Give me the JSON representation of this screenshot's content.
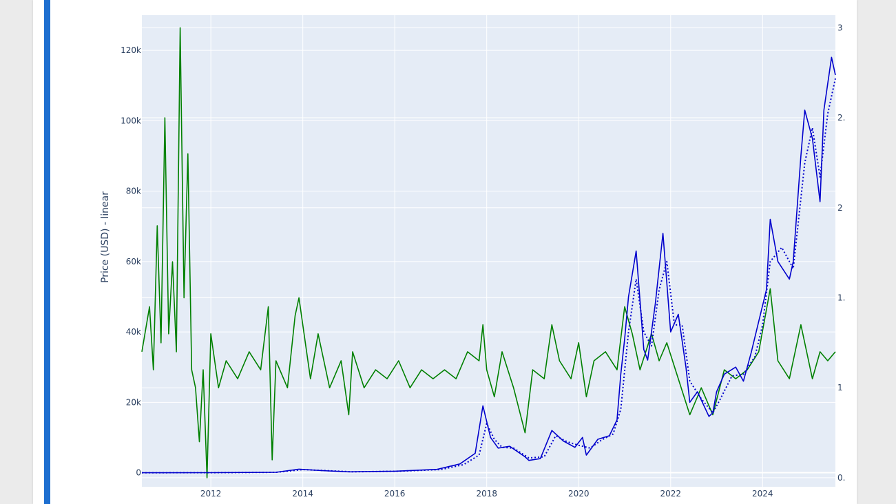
{
  "colors": {
    "accent": "#1e6fd0",
    "plot_bg": "#e5ecf6",
    "price": "#0000cc",
    "volatility": "#008000"
  },
  "chart_data": {
    "type": "line",
    "title": "",
    "xlabel": "",
    "ylabel": "Price (USD) - linear",
    "grid": true,
    "x_tick_labels": [
      "2012",
      "2014",
      "2016",
      "2018",
      "2020",
      "2022",
      "2024"
    ],
    "y_tick_labels": [
      "0",
      "20k",
      "40k",
      "60k",
      "80k",
      "100k",
      "120k"
    ],
    "y2_tick_labels": [
      "0.",
      "1",
      "1.",
      "2",
      "2.",
      "3"
    ],
    "xlim": [
      "2010-07",
      "2025-08"
    ],
    "ylim": [
      -4000,
      130000
    ],
    "y2lim": [
      0.45,
      3.07
    ],
    "series": [
      {
        "axis": "y2",
        "style": "solid",
        "color": "#008000",
        "points": [
          [
            "2010-07",
            1.2
          ],
          [
            "2010-09",
            1.45
          ],
          [
            "2010-10",
            1.1
          ],
          [
            "2010-11",
            1.9
          ],
          [
            "2010-12",
            1.25
          ],
          [
            "2011-01",
            2.5
          ],
          [
            "2011-02",
            1.3
          ],
          [
            "2011-03",
            1.7
          ],
          [
            "2011-04",
            1.2
          ],
          [
            "2011-05",
            3.0
          ],
          [
            "2011-06",
            1.5
          ],
          [
            "2011-07",
            2.3
          ],
          [
            "2011-08",
            1.1
          ],
          [
            "2011-09",
            1.0
          ],
          [
            "2011-10",
            0.7
          ],
          [
            "2011-11",
            1.1
          ],
          [
            "2011-12",
            0.5
          ],
          [
            "2012-01",
            1.3
          ],
          [
            "2012-03",
            1.0
          ],
          [
            "2012-05",
            1.15
          ],
          [
            "2012-08",
            1.05
          ],
          [
            "2012-11",
            1.2
          ],
          [
            "2013-02",
            1.1
          ],
          [
            "2013-04",
            1.45
          ],
          [
            "2013-05",
            0.6
          ],
          [
            "2013-06",
            1.15
          ],
          [
            "2013-09",
            1.0
          ],
          [
            "2013-11",
            1.4
          ],
          [
            "2013-12",
            1.5
          ],
          [
            "2014-02",
            1.2
          ],
          [
            "2014-03",
            1.05
          ],
          [
            "2014-05",
            1.3
          ],
          [
            "2014-08",
            1.0
          ],
          [
            "2014-11",
            1.15
          ],
          [
            "2015-01",
            0.85
          ],
          [
            "2015-02",
            1.2
          ],
          [
            "2015-05",
            1.0
          ],
          [
            "2015-08",
            1.1
          ],
          [
            "2015-11",
            1.05
          ],
          [
            "2016-02",
            1.15
          ],
          [
            "2016-05",
            1.0
          ],
          [
            "2016-08",
            1.1
          ],
          [
            "2016-11",
            1.05
          ],
          [
            "2017-02",
            1.1
          ],
          [
            "2017-05",
            1.05
          ],
          [
            "2017-08",
            1.2
          ],
          [
            "2017-11",
            1.15
          ],
          [
            "2017-12",
            1.35
          ],
          [
            "2018-01",
            1.1
          ],
          [
            "2018-03",
            0.95
          ],
          [
            "2018-05",
            1.2
          ],
          [
            "2018-08",
            1.0
          ],
          [
            "2018-11",
            0.75
          ],
          [
            "2019-01",
            1.1
          ],
          [
            "2019-04",
            1.05
          ],
          [
            "2019-06",
            1.35
          ],
          [
            "2019-08",
            1.15
          ],
          [
            "2019-11",
            1.05
          ],
          [
            "2020-01",
            1.25
          ],
          [
            "2020-03",
            0.95
          ],
          [
            "2020-05",
            1.15
          ],
          [
            "2020-08",
            1.2
          ],
          [
            "2020-11",
            1.1
          ],
          [
            "2021-01",
            1.45
          ],
          [
            "2021-03",
            1.3
          ],
          [
            "2021-05",
            1.1
          ],
          [
            "2021-08",
            1.3
          ],
          [
            "2021-10",
            1.15
          ],
          [
            "2021-12",
            1.25
          ],
          [
            "2022-03",
            1.05
          ],
          [
            "2022-06",
            0.85
          ],
          [
            "2022-09",
            1.0
          ],
          [
            "2022-12",
            0.85
          ],
          [
            "2023-03",
            1.1
          ],
          [
            "2023-06",
            1.05
          ],
          [
            "2023-09",
            1.1
          ],
          [
            "2023-12",
            1.2
          ],
          [
            "2024-03",
            1.55
          ],
          [
            "2024-05",
            1.15
          ],
          [
            "2024-08",
            1.05
          ],
          [
            "2024-11",
            1.35
          ],
          [
            "2025-02",
            1.05
          ],
          [
            "2025-04",
            1.2
          ],
          [
            "2025-06",
            1.15
          ],
          [
            "2025-08",
            1.2
          ]
        ]
      },
      {
        "axis": "y",
        "style": "solid",
        "color": "#0000cc",
        "points": [
          [
            "2010-07",
            0
          ],
          [
            "2012-01",
            5
          ],
          [
            "2013-06",
            100
          ],
          [
            "2013-12",
            1000
          ],
          [
            "2014-06",
            600
          ],
          [
            "2015-01",
            250
          ],
          [
            "2016-01",
            430
          ],
          [
            "2016-12",
            950
          ],
          [
            "2017-06",
            2500
          ],
          [
            "2017-10",
            5500
          ],
          [
            "2017-12",
            19000
          ],
          [
            "2018-02",
            10000
          ],
          [
            "2018-04",
            7000
          ],
          [
            "2018-07",
            7500
          ],
          [
            "2018-11",
            4500
          ],
          [
            "2018-12",
            3500
          ],
          [
            "2019-03",
            4000
          ],
          [
            "2019-06",
            12000
          ],
          [
            "2019-09",
            9000
          ],
          [
            "2019-12",
            7200
          ],
          [
            "2020-02",
            10000
          ],
          [
            "2020-03",
            5000
          ],
          [
            "2020-06",
            9500
          ],
          [
            "2020-09",
            10500
          ],
          [
            "2020-11",
            15000
          ],
          [
            "2020-12",
            28000
          ],
          [
            "2021-01",
            38000
          ],
          [
            "2021-02",
            50000
          ],
          [
            "2021-04",
            63000
          ],
          [
            "2021-06",
            35000
          ],
          [
            "2021-07",
            32000
          ],
          [
            "2021-09",
            48000
          ],
          [
            "2021-11",
            68000
          ],
          [
            "2022-01",
            40000
          ],
          [
            "2022-03",
            45000
          ],
          [
            "2022-05",
            30000
          ],
          [
            "2022-06",
            20000
          ],
          [
            "2022-08",
            23000
          ],
          [
            "2022-11",
            16000
          ],
          [
            "2022-12",
            17000
          ],
          [
            "2023-01",
            23000
          ],
          [
            "2023-03",
            28000
          ],
          [
            "2023-06",
            30000
          ],
          [
            "2023-08",
            26000
          ],
          [
            "2023-10",
            34000
          ],
          [
            "2023-12",
            43000
          ],
          [
            "2024-02",
            52000
          ],
          [
            "2024-03",
            72000
          ],
          [
            "2024-05",
            60000
          ],
          [
            "2024-08",
            55000
          ],
          [
            "2024-09",
            60000
          ],
          [
            "2024-11",
            90000
          ],
          [
            "2024-12",
            103000
          ],
          [
            "2025-02",
            95000
          ],
          [
            "2025-04",
            77000
          ],
          [
            "2025-05",
            103000
          ],
          [
            "2025-07",
            118000
          ],
          [
            "2025-08",
            113000
          ]
        ]
      },
      {
        "axis": "y",
        "style": "dotted",
        "color": "#0000cc",
        "points": [
          [
            "2010-07",
            0
          ],
          [
            "2012-01",
            5
          ],
          [
            "2013-06",
            100
          ],
          [
            "2014-01",
            900
          ],
          [
            "2014-07",
            600
          ],
          [
            "2015-02",
            250
          ],
          [
            "2016-02",
            420
          ],
          [
            "2017-01",
            900
          ],
          [
            "2017-07",
            2300
          ],
          [
            "2017-11",
            5000
          ],
          [
            "2018-01",
            14000
          ],
          [
            "2018-03",
            9500
          ],
          [
            "2018-05",
            7200
          ],
          [
            "2018-08",
            7000
          ],
          [
            "2018-12",
            4200
          ],
          [
            "2019-04",
            4500
          ],
          [
            "2019-07",
            10500
          ],
          [
            "2019-10",
            8800
          ],
          [
            "2020-01",
            7800
          ],
          [
            "2020-04",
            7000
          ],
          [
            "2020-07",
            9300
          ],
          [
            "2020-10",
            11000
          ],
          [
            "2020-12",
            18000
          ],
          [
            "2021-02",
            40000
          ],
          [
            "2021-04",
            55000
          ],
          [
            "2021-06",
            40000
          ],
          [
            "2021-08",
            36000
          ],
          [
            "2021-10",
            52000
          ],
          [
            "2021-12",
            60000
          ],
          [
            "2022-02",
            42000
          ],
          [
            "2022-04",
            42000
          ],
          [
            "2022-06",
            26000
          ],
          [
            "2022-09",
            21000
          ],
          [
            "2022-12",
            17000
          ],
          [
            "2023-02",
            21000
          ],
          [
            "2023-05",
            27500
          ],
          [
            "2023-08",
            28000
          ],
          [
            "2023-11",
            33000
          ],
          [
            "2024-01",
            42000
          ],
          [
            "2024-03",
            60000
          ],
          [
            "2024-06",
            64000
          ],
          [
            "2024-09",
            58000
          ],
          [
            "2024-12",
            88000
          ],
          [
            "2025-02",
            98000
          ],
          [
            "2025-04",
            84000
          ],
          [
            "2025-06",
            102000
          ],
          [
            "2025-08",
            112000
          ]
        ]
      }
    ]
  }
}
